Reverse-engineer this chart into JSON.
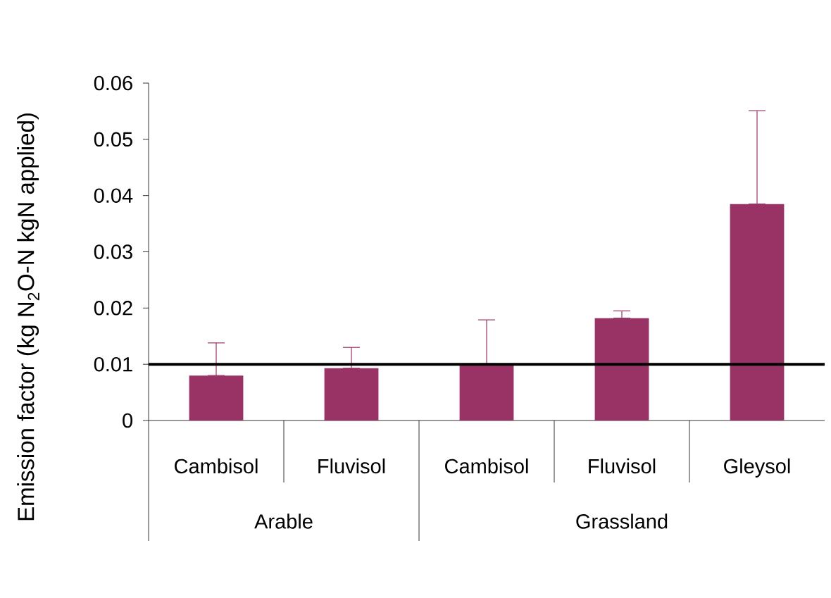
{
  "chart_data": {
    "type": "bar",
    "ylabel": "Emission factor (kg N$_{2}$O-N kgN applied)",
    "categories": [
      "Cambisol",
      "Fluvisol",
      "Cambisol",
      "Fluvisol",
      "Gleysol"
    ],
    "values": [
      0.008,
      0.0093,
      0.0101,
      0.0182,
      0.0385
    ],
    "errors": [
      [
        0.008,
        0.0138
      ],
      [
        0.0093,
        0.013
      ],
      [
        0.0101,
        0.0179
      ],
      [
        0.0182,
        0.0195
      ],
      [
        0.0385,
        0.0551
      ]
    ],
    "color": "#993366",
    "ylim": [
      0,
      0.06
    ],
    "yticks": [
      0,
      0.01,
      0.02,
      0.03,
      0.04,
      0.05,
      0.06
    ],
    "ref_lines": [
      {
        "axis": "y",
        "value": 0.01,
        "color": "#000000"
      }
    ],
    "annotations": [
      "Arable",
      "Grassland"
    ]
  }
}
